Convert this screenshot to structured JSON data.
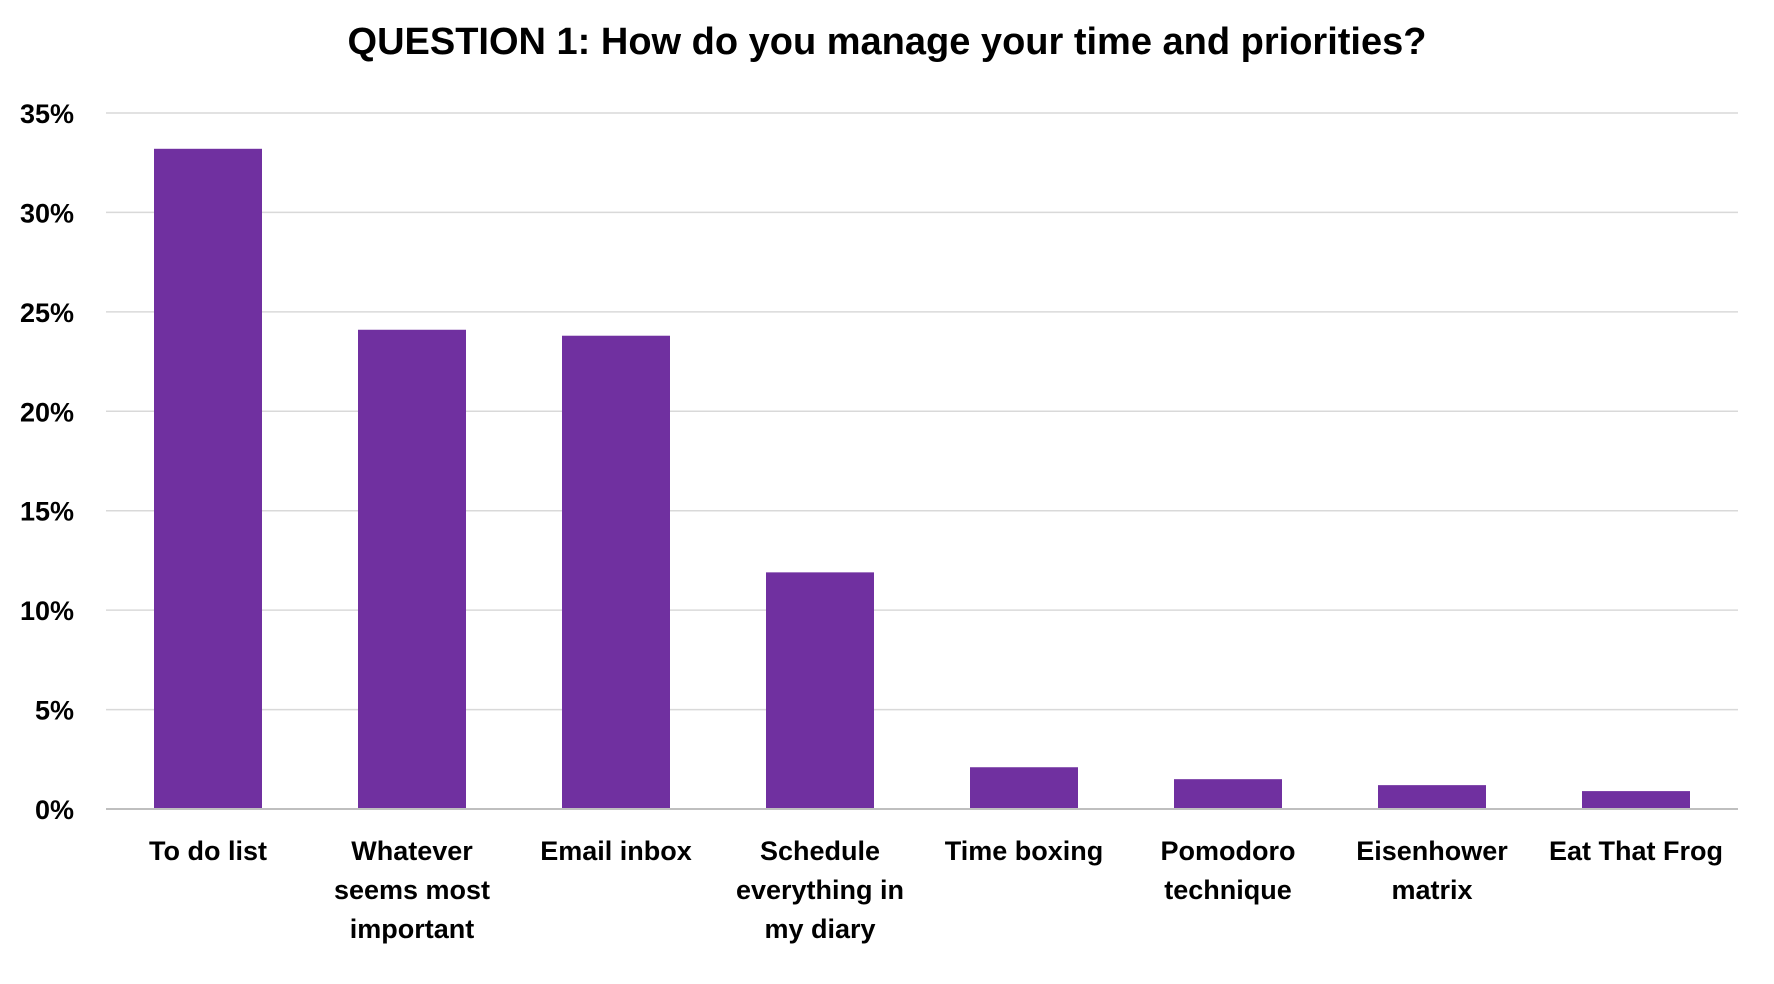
{
  "chart_data": {
    "type": "bar",
    "title": "QUESTION 1: How do you manage your time and priorities?",
    "xlabel": "",
    "ylabel": "",
    "categories": [
      [
        "To do list"
      ],
      [
        "Whatever",
        "seems most",
        "important"
      ],
      [
        "Email inbox"
      ],
      [
        "Schedule",
        "everything in",
        "my diary"
      ],
      [
        "Time boxing"
      ],
      [
        "Pomodoro",
        "technique"
      ],
      [
        "Eisenhower",
        "matrix"
      ],
      [
        "Eat That Frog"
      ]
    ],
    "values": [
      33.2,
      24.1,
      23.8,
      11.9,
      2.1,
      1.5,
      1.2,
      0.9
    ],
    "ylim": [
      0,
      35
    ],
    "yticks": [
      0,
      5,
      10,
      15,
      20,
      25,
      30,
      35
    ],
    "ytick_labels": [
      "0%",
      "5%",
      "10%",
      "15%",
      "20%",
      "25%",
      "30%",
      "35%"
    ],
    "grid": true,
    "legend": "none",
    "bar_color": "#7030a0"
  }
}
